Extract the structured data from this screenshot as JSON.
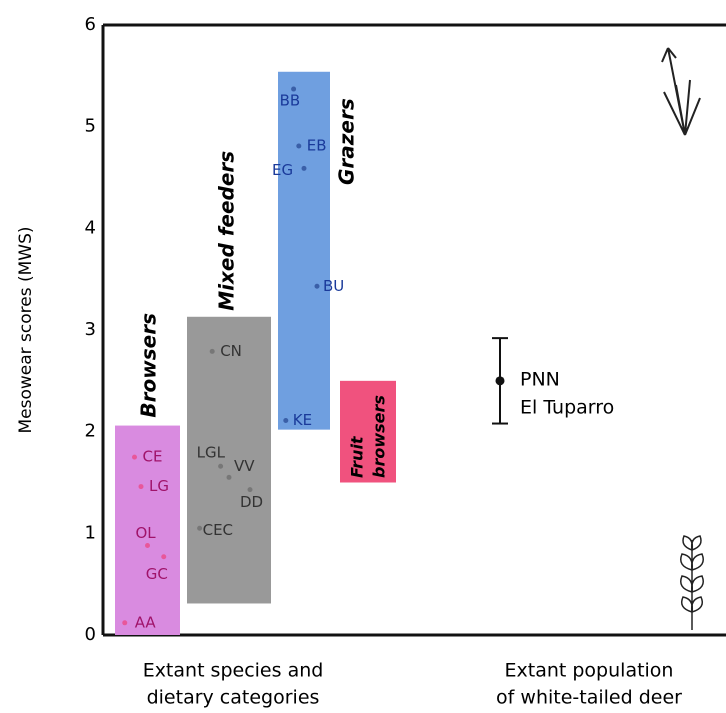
{
  "chart_data": {
    "type": "range",
    "y_label": "Mesowear scores (MWS)",
    "ylim": [
      0,
      6
    ],
    "yticks": [
      0,
      1,
      2,
      3,
      4,
      5,
      6
    ],
    "x_labels": [
      [
        "Extant species and",
        "dietary categories"
      ],
      [
        "Extant population",
        "of white-tailed deer"
      ]
    ],
    "groups": [
      {
        "name": [
          "Browsers"
        ],
        "color": "#d98be0",
        "point_color": "#e8579a",
        "text_color": "#a0136a",
        "low": 0,
        "high": 2.06,
        "labels": [
          "CE",
          "LG",
          "OL",
          "GC",
          "AA"
        ],
        "values": [
          1.75,
          1.46,
          0.88,
          0.77,
          0.12
        ]
      },
      {
        "name": [
          "Mixed feeders"
        ],
        "color": "#999999",
        "point_color": "#777777",
        "text_color": "#333333",
        "low": 0.31,
        "high": 3.13,
        "labels": [
          "CN",
          "LGL",
          "VV",
          "DD",
          "CEC"
        ],
        "values": [
          2.79,
          1.66,
          1.55,
          1.43,
          1.05
        ]
      },
      {
        "name": [
          "Grazers"
        ],
        "color": "#6f9fe0",
        "point_color": "#3a5fa8",
        "text_color": "#1a3a9a",
        "low": 2.02,
        "high": 5.54,
        "labels": [
          "BB",
          "EB",
          "EG",
          "BU",
          "KE"
        ],
        "values": [
          5.37,
          4.81,
          4.59,
          3.43,
          2.11
        ]
      },
      {
        "name": [
          "Fruit",
          "browsers"
        ],
        "color": "#f0527e",
        "low": 1.5,
        "high": 2.5,
        "labels": [],
        "values": []
      }
    ],
    "deer": {
      "label": [
        "PNN",
        "El Tuparro"
      ],
      "value": 2.5,
      "error": 0.42,
      "color": "#111111"
    }
  }
}
